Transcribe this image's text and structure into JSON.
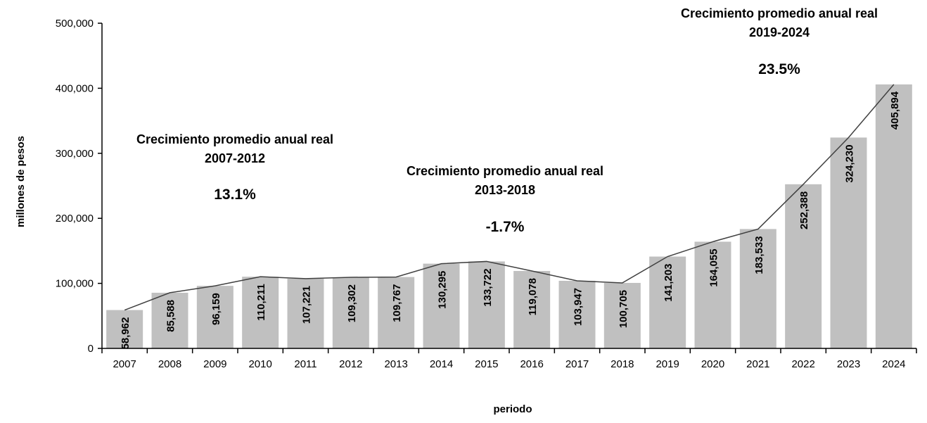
{
  "chart_data": {
    "type": "bar",
    "xlabel": "periodo",
    "ylabel": "millones de pesos",
    "ylim": [
      0,
      500000
    ],
    "yticks": [
      "0",
      "100,000",
      "200,000",
      "300,000",
      "400,000",
      "500,000"
    ],
    "grid": false,
    "categories": [
      "2007",
      "2008",
      "2009",
      "2010",
      "2011",
      "2012",
      "2013",
      "2014",
      "2015",
      "2016",
      "2017",
      "2018",
      "2019",
      "2020",
      "2021",
      "2022",
      "2023",
      "2024"
    ],
    "values": [
      58962,
      85588,
      96159,
      110211,
      107221,
      109302,
      109767,
      130295,
      133722,
      119078,
      103947,
      100705,
      141203,
      164055,
      183533,
      252388,
      324230,
      405894
    ],
    "data_labels": [
      "58,962",
      "85,588",
      "96,159",
      "110,211",
      "107,221",
      "109,302",
      "109,767",
      "130,295",
      "133,722",
      "119,078",
      "103,947",
      "100,705",
      "141,203",
      "164,055",
      "183,533",
      "252,388",
      "324,230",
      "405,894"
    ],
    "overlay_line": true,
    "bar_color": "#c0c0c0",
    "line_color": "#404040",
    "annotations": [
      {
        "title": "Crecimiento promedio anual real",
        "period": "2007-2012",
        "value": "13.1%"
      },
      {
        "title": "Crecimiento promedio anual real",
        "period": "2013-2018",
        "value": "-1.7%"
      },
      {
        "title": "Crecimiento promedio anual real",
        "period": "2019-2024",
        "value": "23.5%"
      }
    ]
  }
}
